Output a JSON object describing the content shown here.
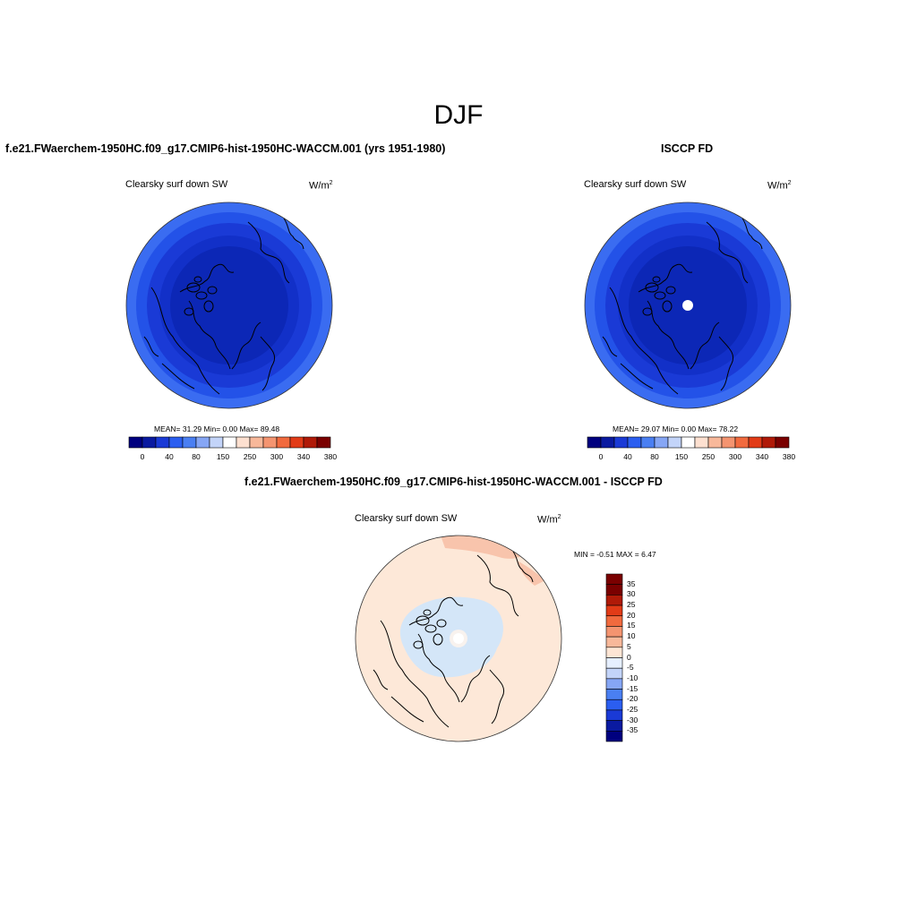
{
  "figure": {
    "title": "DJF",
    "colors": {
      "abs_palette": [
        "#00007f",
        "#0a1aa0",
        "#1a3ad6",
        "#2b5ef0",
        "#4a7ff2",
        "#86a6f5",
        "#c3d4f9",
        "#ffffff",
        "#fde0d0",
        "#f8b89a",
        "#f49470",
        "#f16a3e",
        "#e23b17",
        "#b01a08",
        "#7a0000"
      ],
      "diff_palette": [
        "#00007f",
        "#0a1aa0",
        "#1a3ad6",
        "#2b5ef0",
        "#4a7ff2",
        "#86a6f5",
        "#c3d4f9",
        "#e6efff",
        "#fde5d4",
        "#f8b89a",
        "#f49470",
        "#f16a3e",
        "#e23b17",
        "#b01a08",
        "#7a0000"
      ]
    }
  },
  "panels": {
    "model": {
      "case_title": "f.e21.FWaerchem-1950HC.f09_g17.CMIP6-hist-1950HC-WACCM.001 (yrs 1951-1980)",
      "field_label": "Clearsky surf down SW",
      "units": "W/m",
      "units_exp": "2",
      "stats": "MEAN=  31.29  Min=    0.00  Max=  89.48",
      "colorbar_ticks": [
        "0",
        "40",
        "80",
        "150",
        "250",
        "300",
        "340",
        "380"
      ],
      "ring_colors": [
        "#3a6cf1",
        "#2352e8",
        "#1a3ad6",
        "#1230c8",
        "#0c27b6"
      ]
    },
    "obs": {
      "case_title": "ISCCP FD",
      "field_label": "Clearsky surf down SW",
      "units": "W/m",
      "units_exp": "2",
      "stats": "MEAN=  29.07  Min=    0.00  Max=  78.22",
      "colorbar_ticks": [
        "0",
        "40",
        "80",
        "150",
        "250",
        "300",
        "340",
        "380"
      ],
      "ring_colors": [
        "#3a6cf1",
        "#2352e8",
        "#1a3ad6",
        "#1230c8",
        "#0c27b6"
      ]
    },
    "diff": {
      "case_title": "f.e21.FWaerchem-1950HC.f09_g17.CMIP6-hist-1950HC-WACCM.001 - ISCCP FD",
      "field_label": "Clearsky surf down SW",
      "units": "W/m",
      "units_exp": "2",
      "minmax": "MIN =  -0.51 MAX =   6.47",
      "colorbar_ticks": [
        "35",
        "30",
        "25",
        "20",
        "15",
        "10",
        "5",
        "0",
        "-5",
        "-10",
        "-15",
        "-20",
        "-25",
        "-30",
        "-35"
      ],
      "background_color": "#fde8d8",
      "negative_color": "#d4e6f8",
      "positive_color": "#f8c4ac"
    }
  }
}
